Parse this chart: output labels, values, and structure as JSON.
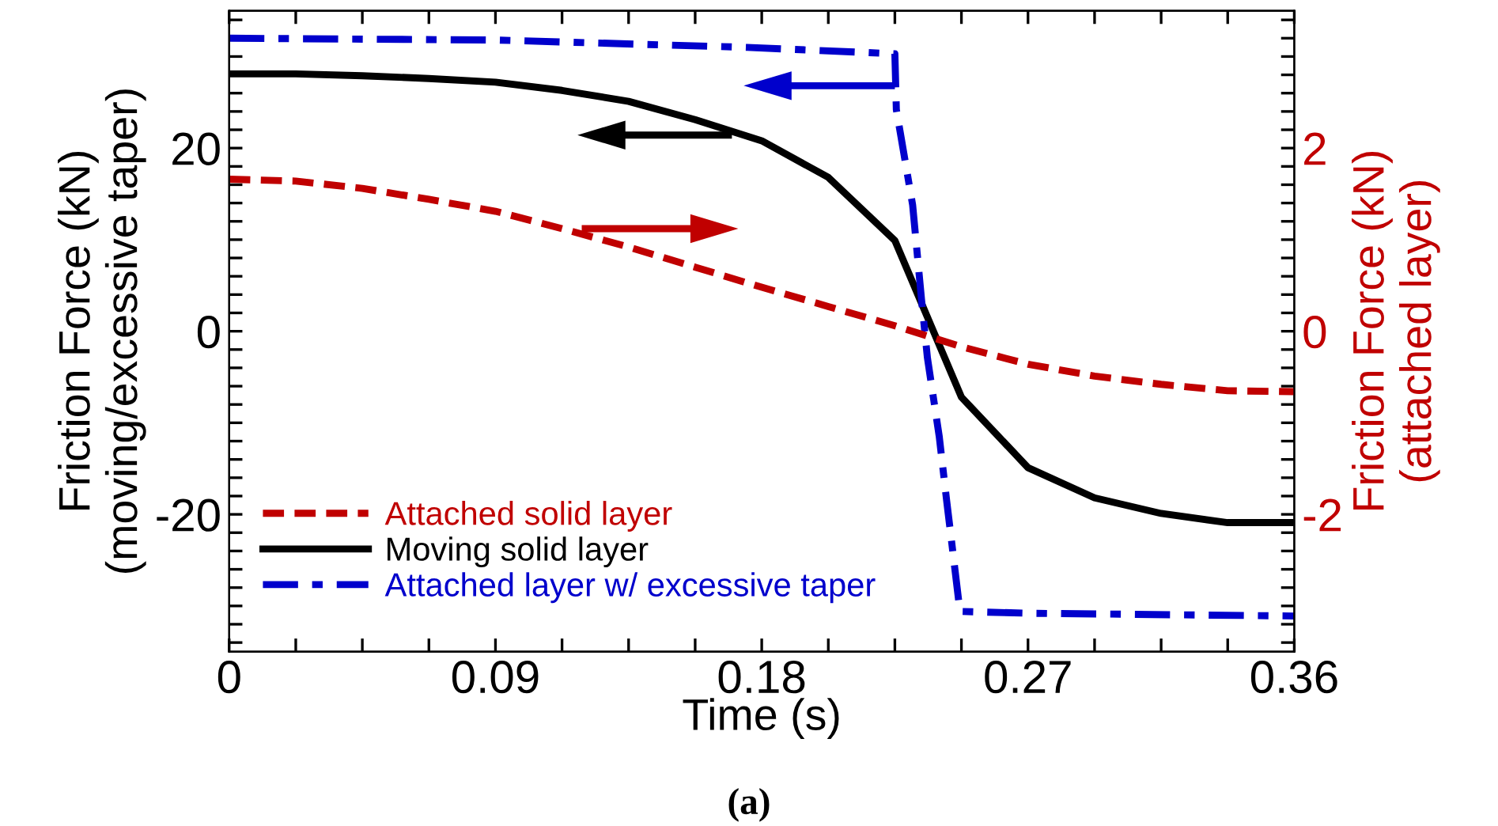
{
  "chart_data": {
    "type": "line",
    "xlabel": "Time (s)",
    "ylabel": "Friction Force (kN)\n(moving/excessive taper)",
    "y2label": "Friction Force (kN)\n(attached layer)",
    "annotations": [
      "(a)"
    ],
    "xlim": [
      0,
      0.36
    ],
    "ylim": [
      -35,
      35
    ],
    "y2lim": [
      -3.5,
      3.5
    ],
    "xticks": [
      0,
      {
        "value": 0.0225,
        "label": null
      },
      {
        "value": 0.045,
        "label": null
      },
      {
        "value": 0.0675,
        "label": null
      },
      0.09,
      {
        "value": 0.1125,
        "label": null
      },
      {
        "value": 0.135,
        "label": null
      },
      {
        "value": 0.1575,
        "label": null
      },
      0.18,
      {
        "value": 0.2025,
        "label": null
      },
      {
        "value": 0.225,
        "label": null
      },
      {
        "value": 0.2475,
        "label": null
      },
      0.27,
      {
        "value": 0.2925,
        "label": null
      },
      {
        "value": 0.315,
        "label": null
      },
      {
        "value": 0.3375,
        "label": null
      },
      0.36
    ],
    "yticks": [
      {
        "value": -34,
        "label": null
      },
      {
        "value": -32,
        "label": null
      },
      {
        "value": -30,
        "label": null
      },
      {
        "value": -28,
        "label": null
      },
      {
        "value": -26,
        "label": null
      },
      {
        "value": -24,
        "label": null
      },
      {
        "value": -22,
        "label": null
      },
      -20,
      {
        "value": -18,
        "label": null
      },
      {
        "value": -16,
        "label": null
      },
      {
        "value": -14,
        "label": null
      },
      {
        "value": -12,
        "label": null
      },
      {
        "value": -10,
        "label": null
      },
      {
        "value": -8,
        "label": null
      },
      {
        "value": -6,
        "label": null
      },
      {
        "value": -4,
        "label": null
      },
      {
        "value": -2,
        "label": null
      },
      0,
      {
        "value": 2,
        "label": null
      },
      {
        "value": 4,
        "label": null
      },
      {
        "value": 6,
        "label": null
      },
      {
        "value": 8,
        "label": null
      },
      {
        "value": 10,
        "label": null
      },
      {
        "value": 12,
        "label": null
      },
      {
        "value": 14,
        "label": null
      },
      {
        "value": 16,
        "label": null
      },
      {
        "value": 18,
        "label": null
      },
      20,
      {
        "value": 22,
        "label": null
      },
      {
        "value": 24,
        "label": null
      },
      {
        "value": 26,
        "label": null
      },
      {
        "value": 28,
        "label": null
      },
      {
        "value": 30,
        "label": null
      },
      {
        "value": 32,
        "label": null
      },
      {
        "value": 34,
        "label": null
      }
    ],
    "y2ticks": [
      {
        "value": -3.4,
        "label": null
      },
      {
        "value": -3.2,
        "label": null
      },
      {
        "value": -3,
        "label": null
      },
      {
        "value": -2.8,
        "label": null
      },
      {
        "value": -2.6,
        "label": null
      },
      {
        "value": -2.4,
        "label": null
      },
      {
        "value": -2.2,
        "label": null
      },
      -2,
      {
        "value": -1.8,
        "label": null
      },
      {
        "value": -1.6,
        "label": null
      },
      {
        "value": -1.4,
        "label": null
      },
      {
        "value": -1.2,
        "label": null
      },
      {
        "value": -1,
        "label": null
      },
      {
        "value": -0.8,
        "label": null
      },
      {
        "value": -0.6,
        "label": null
      },
      {
        "value": -0.4,
        "label": null
      },
      {
        "value": -0.2,
        "label": null
      },
      0,
      {
        "value": 0.2,
        "label": null
      },
      {
        "value": 0.4,
        "label": null
      },
      {
        "value": 0.6,
        "label": null
      },
      {
        "value": 0.8,
        "label": null
      },
      {
        "value": 1,
        "label": null
      },
      {
        "value": 1.2,
        "label": null
      },
      {
        "value": 1.4,
        "label": null
      },
      {
        "value": 1.6,
        "label": null
      },
      {
        "value": 1.8,
        "label": null
      },
      2,
      {
        "value": 2.2,
        "label": null
      },
      {
        "value": 2.4,
        "label": null
      },
      {
        "value": 2.6,
        "label": null
      },
      {
        "value": 2.8,
        "label": null
      },
      {
        "value": 3,
        "label": null
      },
      {
        "value": 3.2,
        "label": null
      },
      {
        "value": 3.4,
        "label": null
      }
    ],
    "legend": "bottom left",
    "grid": false,
    "series": [
      {
        "name": "Attached solid layer",
        "color": "#c00000",
        "axis": "y2",
        "line_style": "dashed",
        "x": [
          0,
          0.0225,
          0.045,
          0.0675,
          0.09,
          0.1125,
          0.135,
          0.1575,
          0.18,
          0.2025,
          0.225,
          0.2475,
          0.27,
          0.2925,
          0.315,
          0.3375,
          0.36
        ],
        "values": [
          1.66,
          1.64,
          1.56,
          1.44,
          1.31,
          1.12,
          0.92,
          0.7,
          0.48,
          0.27,
          0.06,
          -0.17,
          -0.36,
          -0.49,
          -0.58,
          -0.65,
          -0.66
        ]
      },
      {
        "name": "Moving solid layer",
        "color": "#000000",
        "line_style": "solid",
        "x": [
          0,
          0.0225,
          0.045,
          0.0675,
          0.09,
          0.1125,
          0.135,
          0.1575,
          0.18,
          0.2025,
          0.225,
          0.2475,
          0.27,
          0.2925,
          0.315,
          0.3375,
          0.36
        ],
        "values": [
          28.1,
          28.1,
          27.9,
          27.6,
          27.2,
          26.3,
          25.1,
          23.1,
          20.8,
          16.8,
          9.9,
          -7.2,
          -14.9,
          -18.2,
          -19.9,
          -20.9,
          -20.9
        ]
      },
      {
        "name": "Attached layer w/ excessive taper",
        "color": "#0000cc",
        "line_style": "dashdot",
        "x": [
          0,
          0.09,
          0.175,
          0.225,
          0.2255,
          0.231,
          0.234,
          0.236,
          0.24,
          0.2425,
          0.244,
          0.247,
          0.27,
          0.36
        ],
        "values": [
          32.0,
          31.8,
          31.0,
          30.3,
          24.2,
          13.8,
          3.5,
          -2.9,
          -11.5,
          -18.5,
          -22.5,
          -30.6,
          -30.8,
          -31.1
        ]
      }
    ]
  }
}
